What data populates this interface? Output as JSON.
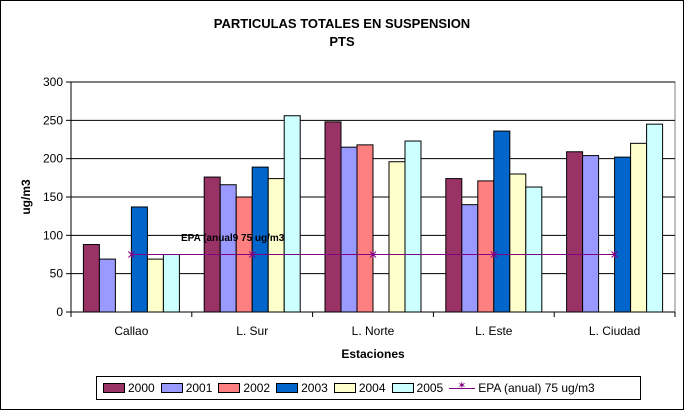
{
  "chart_data": {
    "type": "bar",
    "title": "PARTICULAS TOTALES EN SUSPENSION",
    "subtitle": "PTS",
    "xlabel": "Estaciones",
    "ylabel": "ug/m3",
    "ylim": [
      0,
      300
    ],
    "yticks": [
      "0",
      "50",
      "100",
      "150",
      "200",
      "250",
      "300"
    ],
    "grid": true,
    "legend_position": "bottom",
    "categories": [
      "Callao",
      "L. Sur",
      "L. Norte",
      "L. Este",
      "L. Ciudad"
    ],
    "series": [
      {
        "name": "2000",
        "color": "#993366",
        "values": [
          88,
          176,
          248,
          174,
          209
        ]
      },
      {
        "name": "2001",
        "color": "#9999FF",
        "values": [
          69,
          166,
          215,
          140,
          204
        ]
      },
      {
        "name": "2002",
        "color": "#FF8080",
        "values": [
          null,
          150,
          218,
          171,
          null
        ]
      },
      {
        "name": "2003",
        "color": "#0066CC",
        "values": [
          137,
          189,
          null,
          236,
          202
        ]
      },
      {
        "name": "2004",
        "color": "#FFFFCC",
        "values": [
          69,
          174,
          196,
          180,
          220
        ]
      },
      {
        "name": "2005",
        "color": "#CCFFFF",
        "values": [
          75,
          256,
          223,
          163,
          245
        ]
      }
    ],
    "reference_line": {
      "name": "EPA (anual) 75 ug/m3",
      "value": 75,
      "color": "#800080",
      "annotation": "EPA (anual9 75  ug/m3"
    }
  }
}
